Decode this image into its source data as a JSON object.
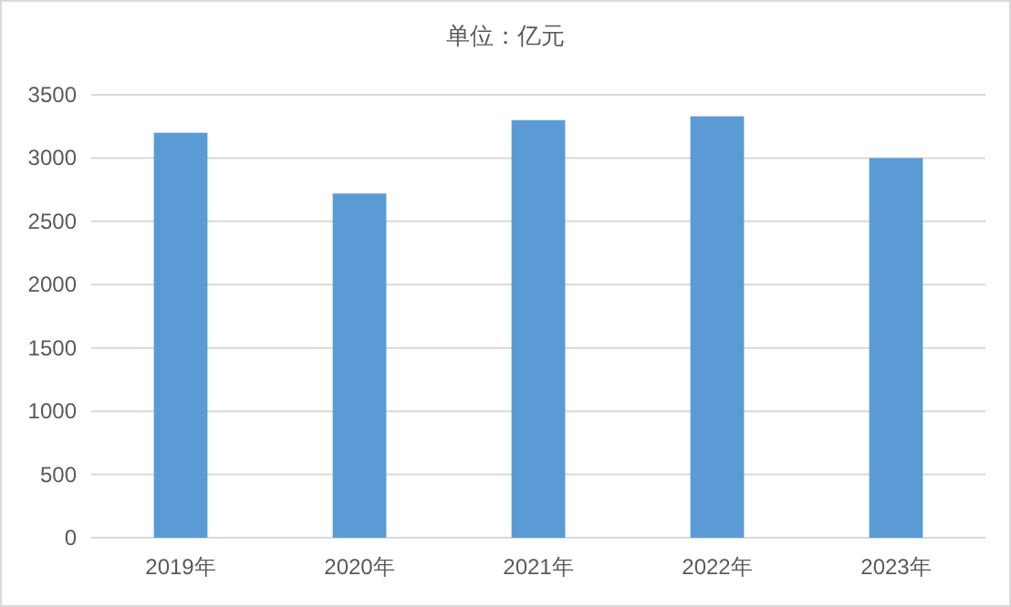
{
  "chart_data": {
    "type": "bar",
    "title": "单位：亿元",
    "categories": [
      "2019年",
      "2020年",
      "2021年",
      "2022年",
      "2023年"
    ],
    "values": [
      3200,
      2720,
      3300,
      3330,
      3000
    ],
    "color": "#5b9bd5",
    "ylim": [
      0,
      3500
    ],
    "yticks": [
      0,
      500,
      1000,
      1500,
      2000,
      2500,
      3000,
      3500
    ],
    "grid": "y"
  }
}
